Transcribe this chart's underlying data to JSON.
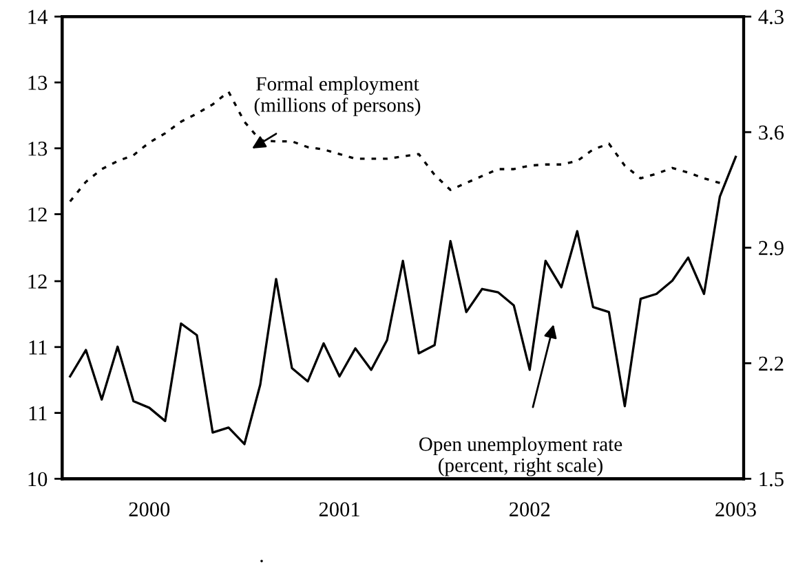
{
  "chart_data": {
    "type": "line",
    "categories": [
      null,
      null,
      null,
      null,
      null,
      "2000",
      null,
      null,
      null,
      null,
      null,
      null,
      null,
      null,
      null,
      null,
      null,
      "2001",
      null,
      null,
      null,
      null,
      null,
      null,
      null,
      null,
      null,
      null,
      null,
      "2002",
      null,
      null,
      null,
      null,
      null,
      null,
      null,
      null,
      null,
      null,
      null,
      null,
      "2003"
    ],
    "series": [
      {
        "color": "#000000",
        "line_style": "dotted",
        "values": [
          12.4,
          12.57,
          12.68,
          12.75,
          12.8,
          12.91,
          12.99,
          13.09,
          13.16,
          13.24,
          13.35,
          13.09,
          12.93,
          12.92,
          12.92,
          12.87,
          12.85,
          12.81,
          12.77,
          12.77,
          12.77,
          12.79,
          12.81,
          12.63,
          12.5,
          12.56,
          12.62,
          12.68,
          12.68,
          12.71,
          12.72,
          12.72,
          12.75,
          12.85,
          12.9,
          12.71,
          12.6,
          12.64,
          12.69,
          12.65,
          12.6,
          12.56,
          null
        ]
      },
      {
        "color": "#000000",
        "line_style": "solid",
        "axis": "y2",
        "values": [
          2.12,
          2.28,
          1.98,
          2.3,
          1.97,
          1.93,
          1.85,
          2.44,
          2.37,
          1.78,
          1.81,
          1.71,
          2.07,
          2.71,
          2.17,
          2.09,
          2.32,
          2.12,
          2.29,
          2.16,
          2.34,
          2.82,
          2.26,
          2.31,
          2.94,
          2.51,
          2.65,
          2.63,
          2.55,
          2.16,
          2.82,
          2.66,
          3.0,
          2.54,
          2.51,
          1.94,
          2.59,
          2.62,
          2.7,
          2.84,
          2.62,
          3.21,
          3.45
        ]
      }
    ],
    "ylim": [
      10,
      14
    ],
    "yticks": [
      10,
      {
        "value": 10.57,
        "label": "11"
      },
      {
        "value": 11.14,
        "label": "11"
      },
      {
        "value": 11.71,
        "label": "12"
      },
      {
        "value": 12.29,
        "label": "12"
      },
      {
        "value": 12.86,
        "label": "13"
      },
      {
        "value": 13.43,
        "label": "13"
      },
      14
    ],
    "y2lim": [
      1.5,
      4.3
    ],
    "y2ticks": [
      1.5,
      2.2,
      2.9,
      3.6,
      4.3
    ],
    "annotations": [
      "Formal employment\n(millions of persons)",
      "Open unemployment rate\n(percent, right scale)",
      "."
    ],
    "grid": false,
    "legend": false
  }
}
